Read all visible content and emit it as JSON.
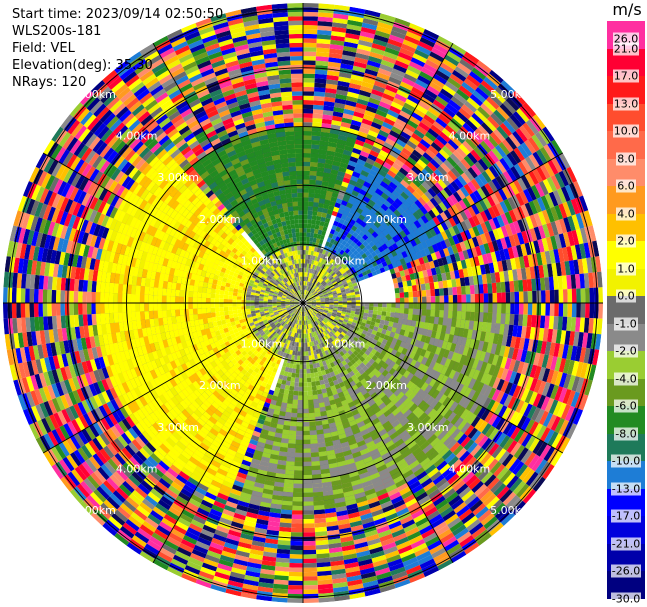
{
  "header": {
    "start_time": "Start time: 2023/09/14 02:50:50",
    "instrument": "WLS200s-181",
    "field": "Field: VEL",
    "elevation": "Elevation(deg): 35.30",
    "nrays": "NRays: 120"
  },
  "colorbar": {
    "unit": "m/s",
    "ticks": [
      "26.0",
      "21.0",
      "17.0",
      "13.0",
      "10.0",
      "8.0",
      "6.0",
      "4.0",
      "2.0",
      "1.0",
      "0.0",
      "-1.0",
      "-2.0",
      "-4.0",
      "-6.0",
      "-8.0",
      "-10.0",
      "-13.0",
      "-17.0",
      "-21.0",
      "-26.0",
      "-30.0"
    ],
    "colors": [
      "#ff2fa0",
      "#ff0033",
      "#ff1a1a",
      "#ff4d2e",
      "#ff6a4a",
      "#ff8c6a",
      "#ff9a1f",
      "#ffc000",
      "#ffff00",
      "#f2f200",
      "#6b6b6b",
      "#8a8a8a",
      "#9acd32",
      "#6a9a1f",
      "#228b22",
      "#1e7a5a",
      "#1e7dd6",
      "#0000ff",
      "#0000dd",
      "#0000aa",
      "#000080",
      "#0a0a55"
    ]
  },
  "ring_labels": [
    "1.00km",
    "2.00km",
    "3.00km",
    "4.00km",
    "5.00km"
  ],
  "chart_data": {
    "type": "heatmap",
    "title": "",
    "field": "VEL",
    "units": "m/s",
    "nrays": 120,
    "elevation_deg": 35.3,
    "range_rings_km": [
      1.0,
      2.0,
      3.0,
      4.0,
      5.0
    ],
    "max_range_km": 5.1,
    "color_scale": [
      -30.0,
      -26.0,
      -21.0,
      -17.0,
      -13.0,
      -10.0,
      -8.0,
      -6.0,
      -4.0,
      -2.0,
      -1.0,
      0.0,
      1.0,
      2.0,
      4.0,
      6.0,
      8.0,
      10.0,
      13.0,
      17.0,
      21.0,
      26.0
    ],
    "sectors": [
      {
        "azimuth_from_deg": 200,
        "azimuth_to_deg": 320,
        "range_km": [
          1.0,
          3.5
        ],
        "velocity_ms": 3.0,
        "description_value_band": "2.0 to 6.0"
      },
      {
        "azimuth_from_deg": 20,
        "azimuth_to_deg": 70,
        "range_km": [
          1.0,
          2.6
        ],
        "velocity_ms": -9.0,
        "description_value_band": "-8.0 to -10.0"
      },
      {
        "azimuth_from_deg": 90,
        "azimuth_to_deg": 200,
        "range_km": [
          1.0,
          3.5
        ],
        "velocity_ms": -1.5,
        "description_value_band": "-1.0 to -4.0"
      },
      {
        "azimuth_from_deg": 320,
        "azimuth_to_deg": 20,
        "range_km": [
          1.0,
          3.0
        ],
        "velocity_ms": -5.0,
        "description_value_band": "-4.0 to -6.0"
      }
    ]
  }
}
